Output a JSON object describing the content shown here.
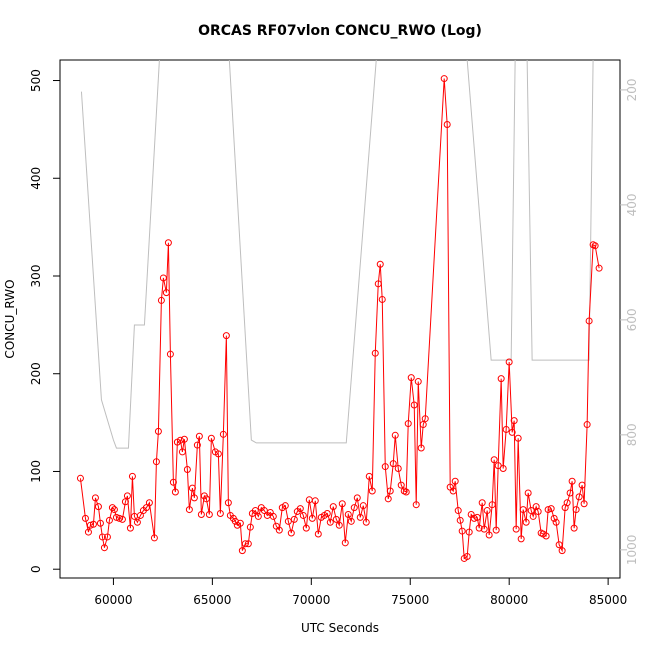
{
  "chart_data": {
    "type": "line",
    "title": "ORCAS RF07vlon CONCU_RWO (Log)",
    "x_label": "UTC Seconds",
    "y_label": "CONCU_RWO",
    "xlim": [
      57300,
      85600
    ],
    "xticks": [
      60000,
      65000,
      70000,
      75000,
      80000,
      85000
    ],
    "ylim": [
      -9,
      521
    ],
    "yticks": [
      0,
      100,
      200,
      300,
      400,
      500
    ],
    "y2lim": [
      1049,
      148
    ],
    "y2ticks": [
      200,
      400,
      600,
      800,
      1000
    ],
    "grid": false,
    "series": [
      {
        "name": "CONCU_RWO",
        "color": "#ff0000",
        "marker": "circle",
        "x": [
          58333,
          58586,
          58737,
          58838,
          58990,
          59091,
          59242,
          59343,
          59444,
          59545,
          59697,
          59798,
          59949,
          60050,
          60152,
          60303,
          60455,
          60606,
          60707,
          60859,
          60960,
          61061,
          61212,
          61364,
          61515,
          61667,
          61818,
          62071,
          62172,
          62273,
          62424,
          62525,
          62676,
          62778,
          62879,
          63030,
          63131,
          63232,
          63384,
          63485,
          63586,
          63737,
          63838,
          63990,
          64091,
          64242,
          64343,
          64444,
          64596,
          64697,
          64848,
          64949,
          65151,
          65303,
          65404,
          65555,
          65707,
          65808,
          65909,
          66060,
          66161,
          66262,
          66414,
          66515,
          66666,
          66818,
          66919,
          67020,
          67171,
          67323,
          67474,
          67626,
          67777,
          67929,
          68080,
          68232,
          68383,
          68535,
          68686,
          68838,
          68989,
          69141,
          69292,
          69444,
          69595,
          69747,
          69898,
          70050,
          70201,
          70353,
          70504,
          70656,
          70807,
          70959,
          71110,
          71262,
          71413,
          71565,
          71716,
          71868,
          72019,
          72171,
          72323,
          72474,
          72626,
          72777,
          72929,
          73080,
          73232,
          73383,
          73484,
          73585,
          73737,
          73888,
          73989,
          74141,
          74242,
          74393,
          74545,
          74696,
          74797,
          74898,
          75050,
          75201,
          75302,
          75404,
          75555,
          75656,
          75757,
          76716,
          76867,
          77019,
          77171,
          77272,
          77424,
          77525,
          77626,
          77727,
          77878,
          77979,
          78080,
          78232,
          78383,
          78484,
          78636,
          78737,
          78888,
          78989,
          79141,
          79242,
          79343,
          79444,
          79595,
          79696,
          79848,
          79999,
          80151,
          80252,
          80353,
          80454,
          80606,
          80707,
          80858,
          80959,
          81111,
          81212,
          81363,
          81464,
          81616,
          81717,
          81868,
          81969,
          82121,
          82272,
          82373,
          82525,
          82676,
          82828,
          82929,
          83080,
          83181,
          83282,
          83383,
          83535,
          83686,
          83787,
          83939,
          84040,
          84242,
          84343,
          84545
        ],
        "values": [
          93,
          52,
          38,
          45,
          46,
          73,
          64,
          47,
          33,
          22,
          33,
          50,
          63,
          61,
          53,
          52,
          51,
          69,
          75,
          42,
          95,
          54,
          48,
          55,
          60,
          63,
          68,
          32,
          110,
          141,
          275,
          298,
          283,
          334,
          220,
          89,
          79,
          130,
          132,
          120,
          133,
          102,
          61,
          83,
          73,
          127,
          136,
          56,
          75,
          72,
          56,
          134,
          120,
          118,
          57,
          138,
          239,
          68,
          55,
          52,
          49,
          45,
          47,
          19,
          26,
          26,
          43,
          57,
          60,
          54,
          63,
          60,
          55,
          58,
          54,
          44,
          40,
          63,
          65,
          49,
          37,
          51,
          59,
          62,
          55,
          42,
          71,
          52,
          70,
          36,
          53,
          55,
          57,
          48,
          64,
          51,
          45,
          67,
          27,
          56,
          49,
          63,
          73,
          53,
          65,
          48,
          95,
          80,
          221,
          292,
          312,
          276,
          105,
          72,
          80,
          108,
          137,
          103,
          86,
          80,
          79,
          149,
          196,
          168,
          66,
          192,
          124,
          148,
          154,
          502,
          455,
          84,
          80,
          90,
          60,
          50,
          39,
          11,
          13,
          38,
          56,
          52,
          53,
          42,
          68,
          41,
          60,
          35,
          66,
          112,
          40,
          106,
          195,
          103,
          143,
          212,
          140,
          152,
          41,
          134,
          31,
          61,
          48,
          78,
          60,
          54,
          64,
          59,
          37,
          36,
          34,
          61,
          62,
          52,
          48,
          25,
          19,
          63,
          68,
          78,
          90,
          42,
          61,
          74,
          86,
          67,
          148,
          254,
          332,
          331,
          308
        ]
      },
      {
        "color": "#bebebe",
        "axis": "y2",
        "x": [
          58384,
          59394,
          60000,
          60152,
          60758,
          61061,
          61566,
          62323,
          62500,
          65600,
          65858,
          66970,
          67222,
          71767,
          73282,
          73500,
          77600,
          77877,
          79089,
          80099,
          80301,
          80600,
          80907,
          81160,
          84038,
          84240
        ],
        "values": [
          203,
          739,
          809,
          823,
          823,
          609,
          609,
          148,
          120,
          120,
          148,
          809,
          814,
          814,
          148,
          120,
          120,
          148,
          670,
          670,
          148,
          120,
          148,
          670,
          670,
          148
        ]
      }
    ]
  }
}
